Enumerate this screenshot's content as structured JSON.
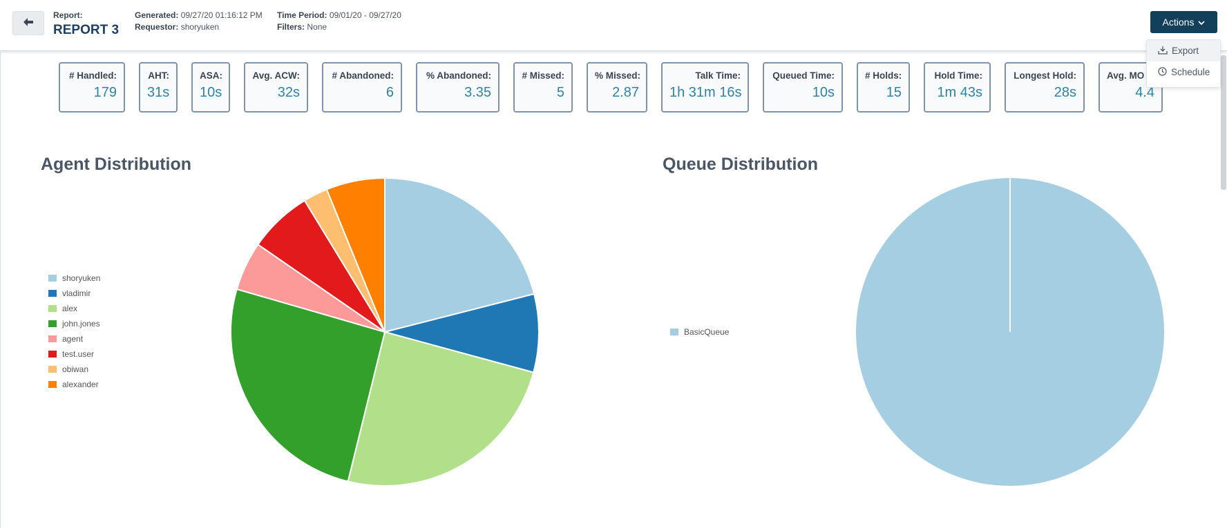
{
  "header": {
    "report_label": "Report:",
    "report_name": "REPORT 3",
    "generated_label": "Generated:",
    "generated_value": "09/27/20 01:16:12 PM",
    "requestor_label": "Requestor:",
    "requestor_value": "shoryuken",
    "period_label": "Time Period:",
    "period_value": "09/01/20 - 09/27/20",
    "filters_label": "Filters:",
    "filters_value": "None",
    "actions_label": "Actions"
  },
  "actions_menu": [
    {
      "label": "Export",
      "icon": "export-icon"
    },
    {
      "label": "Schedule",
      "icon": "clock-icon"
    }
  ],
  "stats": [
    {
      "label": "# Handled:",
      "value": "179"
    },
    {
      "label": "AHT:",
      "value": "31s"
    },
    {
      "label": "ASA:",
      "value": "10s"
    },
    {
      "label": "Avg. ACW:",
      "value": "32s"
    },
    {
      "label": "# Abandoned:",
      "value": "6"
    },
    {
      "label": "% Abandoned:",
      "value": "3.35"
    },
    {
      "label": "# Missed:",
      "value": "5"
    },
    {
      "label": "% Missed:",
      "value": "2.87"
    },
    {
      "label": "Talk Time:",
      "value": "1h 31m 16s"
    },
    {
      "label": "Queued Time:",
      "value": "10s"
    },
    {
      "label": "# Holds:",
      "value": "15"
    },
    {
      "label": "Hold Time:",
      "value": "1m 43s"
    },
    {
      "label": "Longest Hold:",
      "value": "28s"
    },
    {
      "label": "Avg. MO",
      "value": "4.4"
    }
  ],
  "chart_data": [
    {
      "type": "pie",
      "title": "Agent Distribution",
      "categories": [
        "shoryuken",
        "vladimir",
        "alex",
        "john.jones",
        "agent",
        "test.user",
        "obiwan",
        "alexander"
      ],
      "values": [
        20.5,
        8.0,
        24.0,
        25.0,
        5.0,
        6.5,
        2.5,
        6.0
      ],
      "colors": [
        "#a6cee3",
        "#1f78b4",
        "#b2df8a",
        "#33a02c",
        "#fb9a99",
        "#e31a1c",
        "#fdbf6f",
        "#ff7f00"
      ],
      "legend_position": "left"
    },
    {
      "type": "pie",
      "title": "Queue Distribution",
      "categories": [
        "BasicQueue"
      ],
      "values": [
        100
      ],
      "colors": [
        "#a6cee3"
      ],
      "legend_position": "left"
    }
  ]
}
